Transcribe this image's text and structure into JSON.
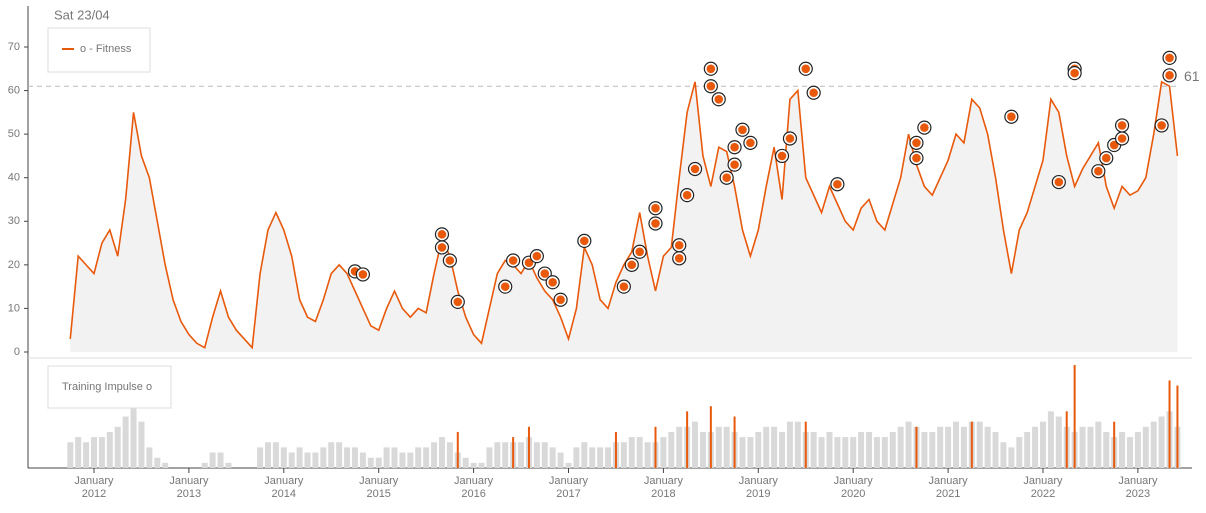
{
  "chart_data": {
    "type": "line",
    "header": "Sat 23/04",
    "legend": "o - Fitness",
    "x": [
      "2011-10",
      "2011-11",
      "2011-12",
      "2012-01",
      "2012-02",
      "2012-03",
      "2012-04",
      "2012-05",
      "2012-06",
      "2012-07",
      "2012-08",
      "2012-09",
      "2012-10",
      "2012-11",
      "2012-12",
      "2013-01",
      "2013-02",
      "2013-03",
      "2013-04",
      "2013-05",
      "2013-06",
      "2013-07",
      "2013-08",
      "2013-09",
      "2013-10",
      "2013-11",
      "2013-12",
      "2014-01",
      "2014-02",
      "2014-03",
      "2014-04",
      "2014-05",
      "2014-06",
      "2014-07",
      "2014-08",
      "2014-09",
      "2014-10",
      "2014-11",
      "2014-12",
      "2015-01",
      "2015-02",
      "2015-03",
      "2015-04",
      "2015-05",
      "2015-06",
      "2015-07",
      "2015-08",
      "2015-09",
      "2015-10",
      "2015-11",
      "2015-12",
      "2016-01",
      "2016-02",
      "2016-03",
      "2016-04",
      "2016-05",
      "2016-06",
      "2016-07",
      "2016-08",
      "2016-09",
      "2016-10",
      "2016-11",
      "2016-12",
      "2017-01",
      "2017-02",
      "2017-03",
      "2017-04",
      "2017-05",
      "2017-06",
      "2017-07",
      "2017-08",
      "2017-09",
      "2017-10",
      "2017-11",
      "2017-12",
      "2018-01",
      "2018-02",
      "2018-03",
      "2018-04",
      "2018-05",
      "2018-06",
      "2018-07",
      "2018-08",
      "2018-09",
      "2018-10",
      "2018-11",
      "2018-12",
      "2019-01",
      "2019-02",
      "2019-03",
      "2019-04",
      "2019-05",
      "2019-06",
      "2019-07",
      "2019-08",
      "2019-09",
      "2019-10",
      "2019-11",
      "2019-12",
      "2020-01",
      "2020-02",
      "2020-03",
      "2020-04",
      "2020-05",
      "2020-06",
      "2020-07",
      "2020-08",
      "2020-09",
      "2020-10",
      "2020-11",
      "2020-12",
      "2021-01",
      "2021-02",
      "2021-03",
      "2021-04",
      "2021-05",
      "2021-06",
      "2021-07",
      "2021-08",
      "2021-09",
      "2021-10",
      "2021-11",
      "2021-12",
      "2022-01",
      "2022-02",
      "2022-03",
      "2022-04",
      "2022-05",
      "2022-06",
      "2022-07",
      "2022-08",
      "2022-09",
      "2022-10",
      "2022-11",
      "2022-12",
      "2023-01",
      "2023-02",
      "2023-03",
      "2023-04",
      "2023-05",
      "2023-06"
    ],
    "series": [
      {
        "name": "o - Fitness",
        "color": "#e8590c",
        "values": [
          3,
          22,
          20,
          18,
          25,
          28,
          22,
          35,
          55,
          45,
          40,
          30,
          20,
          12,
          7,
          4,
          2,
          1,
          8,
          14,
          8,
          5,
          3,
          1,
          18,
          28,
          32,
          28,
          22,
          12,
          8,
          7,
          12,
          18,
          20,
          18,
          14,
          10,
          6,
          5,
          10,
          14,
          10,
          8,
          10,
          9,
          18,
          26,
          22,
          14,
          8,
          4,
          2,
          10,
          18,
          21,
          20,
          18,
          21,
          17,
          14,
          12,
          8,
          3,
          10,
          24,
          20,
          12,
          10,
          16,
          20,
          23,
          32,
          22,
          14,
          22,
          24,
          40,
          55,
          62,
          45,
          38,
          47,
          46,
          38,
          28,
          22,
          28,
          38,
          47,
          35,
          58,
          60,
          40,
          36,
          32,
          38,
          34,
          30,
          28,
          33,
          35,
          30,
          28,
          34,
          40,
          50,
          43,
          38,
          36,
          40,
          44,
          50,
          48,
          58,
          56,
          50,
          40,
          28,
          18,
          28,
          32,
          38,
          44,
          58,
          55,
          45,
          38,
          42,
          45,
          48,
          38,
          33,
          38,
          36,
          37,
          40,
          50,
          62,
          61,
          45
        ]
      }
    ],
    "markers": [
      {
        "x": "2014-10",
        "value": 18.5
      },
      {
        "x": "2014-11",
        "value": 17.8
      },
      {
        "x": "2015-09",
        "value": 27
      },
      {
        "x": "2015-09",
        "value": 24
      },
      {
        "x": "2015-10",
        "value": 21
      },
      {
        "x": "2015-11",
        "value": 11.5
      },
      {
        "x": "2016-05",
        "value": 15
      },
      {
        "x": "2016-06",
        "value": 21
      },
      {
        "x": "2016-08",
        "value": 20.5
      },
      {
        "x": "2016-09",
        "value": 22
      },
      {
        "x": "2016-10",
        "value": 18
      },
      {
        "x": "2016-11",
        "value": 16
      },
      {
        "x": "2016-12",
        "value": 12
      },
      {
        "x": "2017-03",
        "value": 25.5
      },
      {
        "x": "2017-08",
        "value": 15
      },
      {
        "x": "2017-09",
        "value": 20
      },
      {
        "x": "2017-10",
        "value": 23
      },
      {
        "x": "2017-12",
        "value": 29.5
      },
      {
        "x": "2017-12",
        "value": 33
      },
      {
        "x": "2018-03",
        "value": 21.5
      },
      {
        "x": "2018-03",
        "value": 24.5
      },
      {
        "x": "2018-04",
        "value": 36
      },
      {
        "x": "2018-05",
        "value": 42
      },
      {
        "x": "2018-07",
        "value": 61
      },
      {
        "x": "2018-07",
        "value": 65
      },
      {
        "x": "2018-08",
        "value": 58
      },
      {
        "x": "2018-09",
        "value": 40
      },
      {
        "x": "2018-10",
        "value": 43
      },
      {
        "x": "2018-10",
        "value": 47
      },
      {
        "x": "2018-11",
        "value": 51
      },
      {
        "x": "2018-12",
        "value": 48
      },
      {
        "x": "2019-04",
        "value": 45
      },
      {
        "x": "2019-05",
        "value": 49
      },
      {
        "x": "2019-07",
        "value": 65
      },
      {
        "x": "2019-08",
        "value": 59.5
      },
      {
        "x": "2019-11",
        "value": 38.5
      },
      {
        "x": "2020-09",
        "value": 44.5
      },
      {
        "x": "2020-09",
        "value": 48
      },
      {
        "x": "2020-10",
        "value": 51.5
      },
      {
        "x": "2021-09",
        "value": 54
      },
      {
        "x": "2022-03",
        "value": 39
      },
      {
        "x": "2022-05",
        "value": 65
      },
      {
        "x": "2022-05",
        "value": 64
      },
      {
        "x": "2022-08",
        "value": 41.5
      },
      {
        "x": "2022-09",
        "value": 44.5
      },
      {
        "x": "2022-10",
        "value": 47.5
      },
      {
        "x": "2022-11",
        "value": 49
      },
      {
        "x": "2022-11",
        "value": 52
      },
      {
        "x": "2023-04",
        "value": 52
      },
      {
        "x": "2023-05",
        "value": 63.5
      },
      {
        "x": "2023-05",
        "value": 67.5
      }
    ],
    "ylim": [
      0,
      70
    ],
    "yticks": [
      0,
      10,
      20,
      30,
      40,
      50,
      60,
      70
    ],
    "reference": {
      "value": 61,
      "label": "61"
    },
    "xticks": [
      {
        "value": "2012-01",
        "month": "January",
        "year": "2012"
      },
      {
        "value": "2013-01",
        "month": "January",
        "year": "2013"
      },
      {
        "value": "2014-01",
        "month": "January",
        "year": "2014"
      },
      {
        "value": "2015-01",
        "month": "January",
        "year": "2015"
      },
      {
        "value": "2016-01",
        "month": "January",
        "year": "2016"
      },
      {
        "value": "2017-01",
        "month": "January",
        "year": "2017"
      },
      {
        "value": "2018-01",
        "month": "January",
        "year": "2018"
      },
      {
        "value": "2019-01",
        "month": "January",
        "year": "2019"
      },
      {
        "value": "2020-01",
        "month": "January",
        "year": "2020"
      },
      {
        "value": "2021-01",
        "month": "January",
        "year": "2021"
      },
      {
        "value": "2022-01",
        "month": "January",
        "year": "2022"
      },
      {
        "value": "2023-01",
        "month": "January",
        "year": "2023"
      }
    ],
    "impulse": {
      "legend": "Training Impulse o",
      "ylim": [
        0,
        100
      ],
      "color": "#d9d9d9",
      "values": [
        25,
        30,
        25,
        30,
        30,
        35,
        40,
        50,
        60,
        45,
        20,
        10,
        5,
        0,
        0,
        0,
        0,
        5,
        15,
        15,
        5,
        0,
        0,
        0,
        20,
        25,
        25,
        20,
        15,
        20,
        15,
        15,
        20,
        25,
        25,
        20,
        20,
        15,
        10,
        10,
        20,
        20,
        15,
        15,
        20,
        20,
        25,
        30,
        25,
        15,
        10,
        5,
        5,
        20,
        25,
        25,
        25,
        25,
        30,
        25,
        25,
        20,
        15,
        5,
        20,
        25,
        20,
        20,
        20,
        25,
        25,
        30,
        30,
        25,
        25,
        30,
        35,
        40,
        40,
        45,
        35,
        35,
        40,
        40,
        35,
        30,
        30,
        35,
        40,
        40,
        35,
        45,
        45,
        35,
        35,
        30,
        35,
        30,
        30,
        30,
        35,
        35,
        30,
        30,
        35,
        40,
        45,
        40,
        35,
        35,
        40,
        40,
        45,
        40,
        45,
        45,
        40,
        35,
        25,
        20,
        30,
        35,
        40,
        45,
        55,
        50,
        40,
        35,
        40,
        40,
        45,
        35,
        30,
        35,
        30,
        35,
        40,
        45,
        50,
        55,
        40
      ],
      "highlight_color": "#e8590c",
      "highlights": [
        {
          "x": "2015-11",
          "value": 35
        },
        {
          "x": "2016-06",
          "value": 30
        },
        {
          "x": "2016-08",
          "value": 40
        },
        {
          "x": "2017-07",
          "value": 35
        },
        {
          "x": "2017-12",
          "value": 40
        },
        {
          "x": "2018-04",
          "value": 55
        },
        {
          "x": "2018-07",
          "value": 60
        },
        {
          "x": "2018-10",
          "value": 50
        },
        {
          "x": "2019-07",
          "value": 45
        },
        {
          "x": "2020-09",
          "value": 40
        },
        {
          "x": "2021-04",
          "value": 45
        },
        {
          "x": "2022-04",
          "value": 55
        },
        {
          "x": "2022-05",
          "value": 100
        },
        {
          "x": "2022-10",
          "value": 45
        },
        {
          "x": "2023-05",
          "value": 85
        },
        {
          "x": "2023-06",
          "value": 80
        }
      ]
    }
  }
}
